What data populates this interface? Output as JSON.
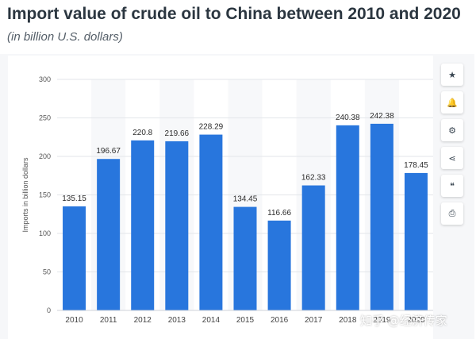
{
  "header": {
    "title": "Import value of crude oil to China between 2010 and 2020",
    "subtitle": "(in billion U.S. dollars)"
  },
  "toolbar": {
    "buttons": [
      {
        "name": "star-icon",
        "glyph": "★"
      },
      {
        "name": "bell-icon",
        "glyph": "🔔"
      },
      {
        "name": "gear-icon",
        "glyph": "⚙"
      },
      {
        "name": "share-icon",
        "glyph": "⋖"
      },
      {
        "name": "quote-icon",
        "glyph": "❝"
      },
      {
        "name": "print-icon",
        "glyph": "⎙"
      }
    ]
  },
  "watermark": "知乎 @经济传家",
  "chart_data": {
    "type": "bar",
    "title": "Import value of crude oil to China between 2010 and 2020",
    "subtitle": "(in billion U.S. dollars)",
    "categories": [
      "2010",
      "2011",
      "2012",
      "2013",
      "2014",
      "2015",
      "2016",
      "2017",
      "2018",
      "2019",
      "2020"
    ],
    "values": [
      135.15,
      196.67,
      220.8,
      219.66,
      228.29,
      134.45,
      116.66,
      162.33,
      240.38,
      242.38,
      178.45
    ],
    "value_labels": [
      "135.15",
      "196.67",
      "220.8",
      "219.66",
      "228.29",
      "134.45",
      "116.66",
      "162.33",
      "240.38",
      "242.38",
      "178.45"
    ],
    "xlabel": "",
    "ylabel": "Imports in billion dollars",
    "ylim": [
      0,
      300
    ],
    "yticks": [
      0,
      50,
      100,
      150,
      200,
      250,
      300
    ],
    "grid": true,
    "bar_color": "#2876dd",
    "alt_band_color": "#f7f8fa"
  }
}
